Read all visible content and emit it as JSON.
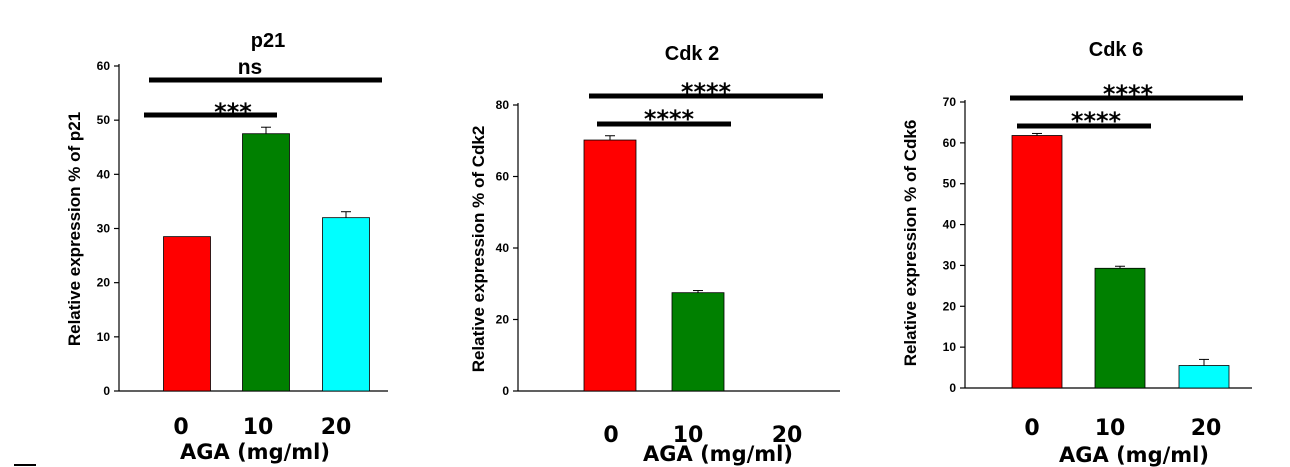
{
  "chart_data": [
    {
      "type": "bar",
      "title": "p21",
      "ylabel": "Relative expression % of p21",
      "xlabel": "AGA (mg/ml)",
      "categories": [
        "0",
        "10",
        "20"
      ],
      "values": [
        28.5,
        47.5,
        32.0
      ],
      "errors": [
        0.0,
        1.2,
        1.1
      ],
      "colors": [
        "#ff0000",
        "#008000",
        "#00ffff"
      ],
      "ylim": [
        0,
        60
      ],
      "yticks": [
        0,
        10,
        20,
        30,
        40,
        50,
        60
      ],
      "grid": false,
      "significance": [
        {
          "label": "***",
          "from": "0",
          "to": "10"
        },
        {
          "label": "ns",
          "from": "0",
          "to": "20"
        }
      ]
    },
    {
      "type": "bar",
      "title": "Cdk 2",
      "ylabel": "Relative expression % of Cdk2",
      "xlabel": "AGA (mg/ml)",
      "categories": [
        "0",
        "10",
        "20"
      ],
      "values": [
        70.2,
        27.5,
        0
      ],
      "errors": [
        1.2,
        0.6,
        0
      ],
      "colors": [
        "#ff0000",
        "#008000",
        "#00ffff"
      ],
      "ylim": [
        0,
        80
      ],
      "yticks": [
        0,
        20,
        40,
        60,
        80
      ],
      "grid": false,
      "significance": [
        {
          "label": "****",
          "from": "0",
          "to": "10"
        },
        {
          "label": "****",
          "from": "0",
          "to": "20"
        }
      ]
    },
    {
      "type": "bar",
      "title": "Cdk 6",
      "ylabel": "Relative expression % of Cdk6",
      "xlabel": "AGA (mg/ml)",
      "categories": [
        "0",
        "10",
        "20"
      ],
      "values": [
        61.8,
        29.3,
        5.5
      ],
      "errors": [
        0.5,
        0.5,
        1.5
      ],
      "colors": [
        "#ff0000",
        "#008000",
        "#00ffff"
      ],
      "ylim": [
        0,
        70
      ],
      "yticks": [
        0,
        10,
        20,
        30,
        40,
        50,
        60,
        70
      ],
      "grid": false,
      "significance": [
        {
          "label": "****",
          "from": "0",
          "to": "10"
        },
        {
          "label": "****",
          "from": "0",
          "to": "20"
        }
      ]
    }
  ]
}
